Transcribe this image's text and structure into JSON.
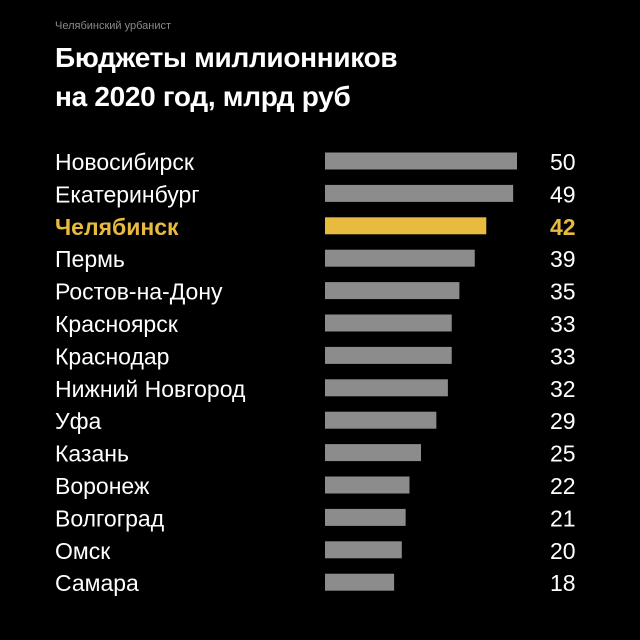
{
  "source": "Челябинский урбанист",
  "title_line1": "Бюджеты миллионников",
  "title_line2": "на 2020 год, млрд руб",
  "colors": {
    "background": "#000000",
    "bar": "#8c8c8c",
    "highlight": "#e8bb3e",
    "text": "#ffffff"
  },
  "chart_data": {
    "type": "bar",
    "orientation": "horizontal",
    "title": "Бюджеты миллионников на 2020 год, млрд руб",
    "categories": [
      "Новосибирск",
      "Екатеринбург",
      "Челябинск",
      "Пермь",
      "Ростов-на-Дону",
      "Красноярск",
      "Краснодар",
      "Нижний Новгород",
      "Уфа",
      "Казань",
      "Воронеж",
      "Волгоград",
      "Омск",
      "Самара"
    ],
    "values": [
      50,
      49,
      42,
      39,
      35,
      33,
      33,
      32,
      29,
      25,
      22,
      21,
      20,
      18
    ],
    "highlight": "Челябинск",
    "xlim": [
      0,
      50
    ],
    "grid": false,
    "legend": "none"
  }
}
